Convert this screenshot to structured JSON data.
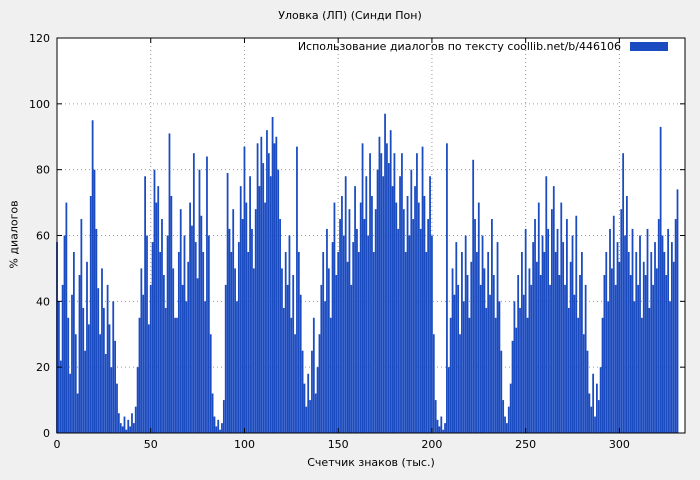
{
  "chart_data": {
    "type": "bar",
    "title": "Уловка (ЛП) (Синди Пон)",
    "legend_label": "Использование диалогов по тексту  coollib.net/b/446106",
    "xlabel": "Счетчик знаков (тыс.)",
    "ylabel": "% диалогов",
    "xlim": [
      0,
      335
    ],
    "ylim": [
      0,
      120
    ],
    "x_ticks": [
      0,
      50,
      100,
      150,
      200,
      250,
      300
    ],
    "y_ticks": [
      0,
      20,
      40,
      60,
      80,
      100,
      120
    ],
    "grid": true,
    "legend_position": "top-right-inside",
    "bar_color": "#1b4bc0",
    "plot_background": "#ffffff",
    "grid_color": "#9a9a9a",
    "x_start": 0,
    "x_step": 1,
    "values": [
      58,
      40,
      22,
      45,
      60,
      70,
      35,
      18,
      42,
      55,
      30,
      12,
      48,
      65,
      38,
      25,
      52,
      33,
      72,
      95,
      80,
      62,
      44,
      30,
      50,
      38,
      24,
      45,
      33,
      20,
      40,
      28,
      15,
      6,
      3,
      2,
      5,
      1,
      4,
      2,
      6,
      3,
      8,
      20,
      35,
      50,
      42,
      78,
      60,
      33,
      45,
      58,
      80,
      70,
      75,
      55,
      65,
      48,
      38,
      60,
      91,
      72,
      50,
      35,
      35,
      55,
      68,
      45,
      60,
      40,
      52,
      70,
      63,
      85,
      58,
      47,
      80,
      66,
      55,
      40,
      84,
      60,
      30,
      12,
      5,
      2,
      4,
      1,
      3,
      10,
      45,
      79,
      62,
      55,
      68,
      50,
      40,
      58,
      75,
      65,
      87,
      70,
      55,
      78,
      62,
      50,
      68,
      88,
      75,
      90,
      82,
      70,
      92,
      85,
      78,
      96,
      88,
      90,
      80,
      65,
      50,
      38,
      55,
      45,
      60,
      35,
      48,
      30,
      87,
      55,
      42,
      25,
      15,
      8,
      18,
      10,
      25,
      35,
      12,
      20,
      30,
      45,
      55,
      40,
      62,
      50,
      35,
      58,
      70,
      48,
      55,
      65,
      72,
      60,
      78,
      52,
      68,
      45,
      58,
      75,
      62,
      55,
      70,
      88,
      65,
      78,
      60,
      85,
      72,
      55,
      68,
      80,
      90,
      85,
      78,
      97,
      88,
      82,
      92,
      75,
      85,
      70,
      62,
      78,
      85,
      68,
      55,
      72,
      60,
      80,
      65,
      75,
      85,
      70,
      62,
      87,
      72,
      55,
      65,
      78,
      60,
      30,
      10,
      4,
      2,
      5,
      1,
      3,
      88,
      20,
      35,
      50,
      42,
      58,
      45,
      30,
      55,
      40,
      60,
      48,
      35,
      52,
      83,
      65,
      55,
      70,
      45,
      60,
      50,
      38,
      55,
      42,
      65,
      48,
      35,
      58,
      40,
      25,
      10,
      5,
      3,
      8,
      15,
      28,
      40,
      32,
      48,
      38,
      55,
      42,
      62,
      35,
      50,
      45,
      58,
      65,
      52,
      70,
      48,
      60,
      55,
      78,
      62,
      45,
      68,
      75,
      55,
      62,
      48,
      70,
      58,
      45,
      65,
      38,
      52,
      60,
      42,
      66,
      35,
      48,
      55,
      30,
      45,
      25,
      12,
      8,
      18,
      5,
      15,
      10,
      20,
      35,
      48,
      55,
      40,
      62,
      50,
      66,
      45,
      58,
      52,
      68,
      85,
      60,
      72,
      55,
      48,
      62,
      40,
      55,
      45,
      60,
      35,
      52,
      48,
      62,
      38,
      55,
      45,
      58,
      50,
      65,
      93,
      60,
      55,
      48,
      62,
      40,
      58,
      52,
      65,
      74
    ]
  }
}
